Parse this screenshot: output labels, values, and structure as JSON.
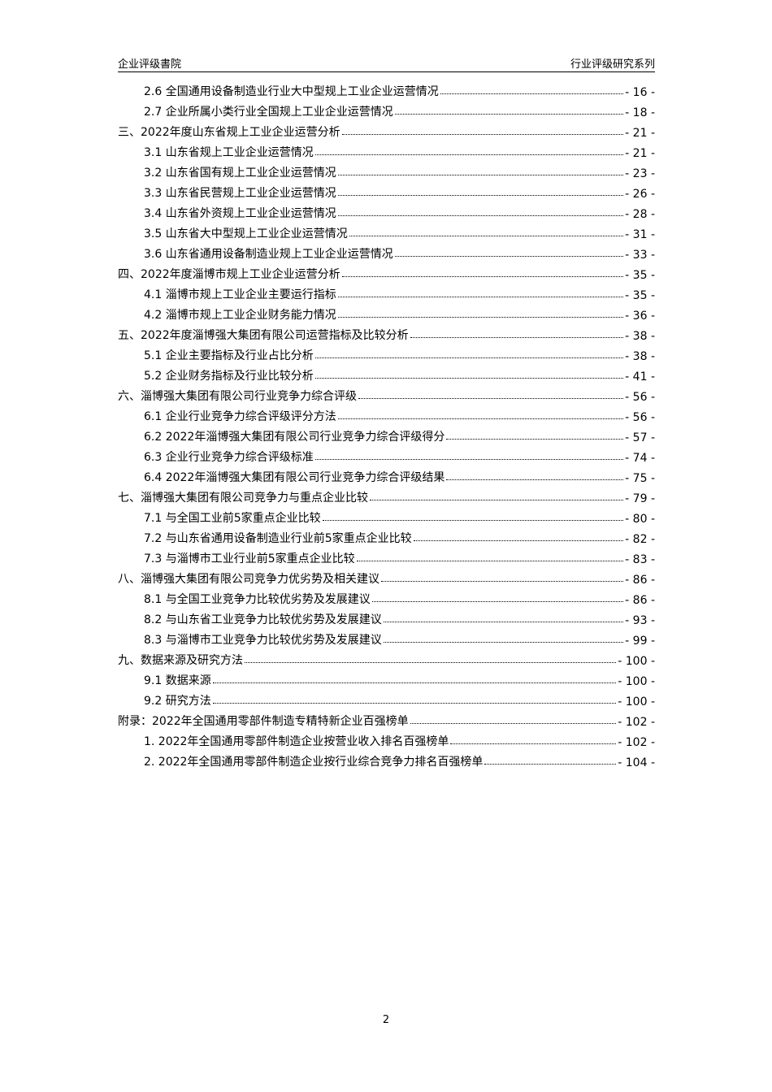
{
  "header": {
    "left": "企业评级書院",
    "right": "行业评级研究系列"
  },
  "toc": [
    {
      "title": "2.6 全国通用设备制造业行业大中型规上工业企业运营情况",
      "page": "- 16 -"
    },
    {
      "title": "2.7 企业所属小类行业全国规上工业企业运营情况",
      "page": "- 18 -"
    },
    {
      "title": "三、2022年度山东省规上工业企业运营分析",
      "page": "- 21 -"
    },
    {
      "title": "3.1 山东省规上工业企业运营情况",
      "page": "- 21 -"
    },
    {
      "title": "3.2 山东省国有规上工业企业运营情况",
      "page": "- 23 -"
    },
    {
      "title": "3.3 山东省民营规上工业企业运营情况",
      "page": "- 26 -"
    },
    {
      "title": "3.4 山东省外资规上工业企业运营情况",
      "page": "- 28 -"
    },
    {
      "title": "3.5 山东省大中型规上工业企业运营情况",
      "page": "- 31 -"
    },
    {
      "title": "3.6 山东省通用设备制造业规上工业企业运营情况",
      "page": "- 33 -"
    },
    {
      "title": "四、2022年度淄博市规上工业企业运营分析",
      "page": "- 35 -"
    },
    {
      "title": "4.1 淄博市规上工业企业主要运行指标",
      "page": "- 35 -"
    },
    {
      "title": "4.2 淄博市规上工业企业财务能力情况",
      "page": "- 36 -"
    },
    {
      "title": "五、2022年度淄博强大集团有限公司运营指标及比较分析",
      "page": "- 38 -"
    },
    {
      "title": "5.1 企业主要指标及行业占比分析",
      "page": "- 38 -"
    },
    {
      "title": "5.2 企业财务指标及行业比较分析",
      "page": "- 41 -"
    },
    {
      "title": "六、淄博强大集团有限公司行业竞争力综合评级",
      "page": "- 56 -"
    },
    {
      "title": "6.1 企业行业竞争力综合评级评分方法",
      "page": "- 56 -"
    },
    {
      "title": "6.2 2022年淄博强大集团有限公司行业竞争力综合评级得分",
      "page": "- 57 -"
    },
    {
      "title": "6.3 企业行业竞争力综合评级标准",
      "page": "- 74 -"
    },
    {
      "title": "6.4 2022年淄博强大集团有限公司行业竞争力综合评级结果",
      "page": "- 75 -"
    },
    {
      "title": "七、淄博强大集团有限公司竞争力与重点企业比较",
      "page": "- 79 -"
    },
    {
      "title": "7.1 与全国工业前5家重点企业比较",
      "page": "- 80 -"
    },
    {
      "title": "7.2 与山东省通用设备制造业行业前5家重点企业比较",
      "page": "- 82 -"
    },
    {
      "title": "7.3 与淄博市工业行业前5家重点企业比较",
      "page": "- 83 -"
    },
    {
      "title": "八、淄博强大集团有限公司竞争力优劣势及相关建议",
      "page": "- 86 -"
    },
    {
      "title": "8.1 与全国工业竞争力比较优劣势及发展建议",
      "page": "- 86 -"
    },
    {
      "title": "8.2 与山东省工业竞争力比较优劣势及发展建议",
      "page": "- 93 -"
    },
    {
      "title": "8.3 与淄博市工业竞争力比较优劣势及发展建议",
      "page": "- 99 -"
    },
    {
      "title": "九、数据来源及研究方法",
      "page": "- 100 -"
    },
    {
      "title": "9.1 数据来源",
      "page": "- 100 -"
    },
    {
      "title": "9.2 研究方法",
      "page": "- 100 -"
    },
    {
      "title": "附录：2022年全国通用零部件制造专精特新企业百强榜单",
      "page": "- 102 -"
    },
    {
      "title": "1. 2022年全国通用零部件制造企业按营业收入排名百强榜单",
      "page": "- 102 -"
    },
    {
      "title": "2. 2022年全国通用零部件制造企业按行业综合竞争力排名百强榜单",
      "page": "- 104 -"
    }
  ],
  "footer": {
    "page_number": "2"
  }
}
